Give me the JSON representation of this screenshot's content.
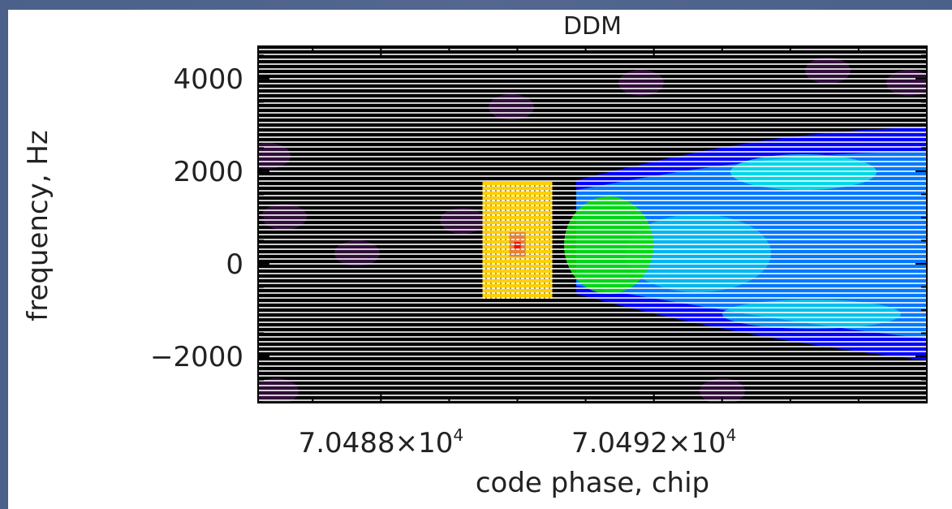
{
  "slide": {
    "background_color": "#4a5f86",
    "panel_color": "#ffffff"
  },
  "chart_data": {
    "type": "heatmap",
    "title": "DDM",
    "xlabel": "code phase, chip",
    "ylabel": "frequency, Hz",
    "xlim": [
      70486.2,
      70496.0
    ],
    "ylim": [
      -3000,
      4700
    ],
    "x_ticks": [
      {
        "value": 70488,
        "mantissa": "7.0488×10",
        "exponent": "4"
      },
      {
        "value": 70492,
        "mantissa": "7.0492×10",
        "exponent": "4"
      }
    ],
    "y_ticks": [
      {
        "value": 4000,
        "label": "4000"
      },
      {
        "value": 2000,
        "label": "2000"
      },
      {
        "value": 0,
        "label": "0"
      },
      {
        "value": -2000,
        "label": "−2000"
      }
    ],
    "colormap": [
      "#000000",
      "#5a1a6a",
      "#0000ff",
      "#00a0ff",
      "#00ffe0",
      "#00e000",
      "#ffd000",
      "#ff0000"
    ],
    "peak": {
      "code_phase": 70490.0,
      "frequency": 400
    },
    "grid": true,
    "legend": "none"
  }
}
